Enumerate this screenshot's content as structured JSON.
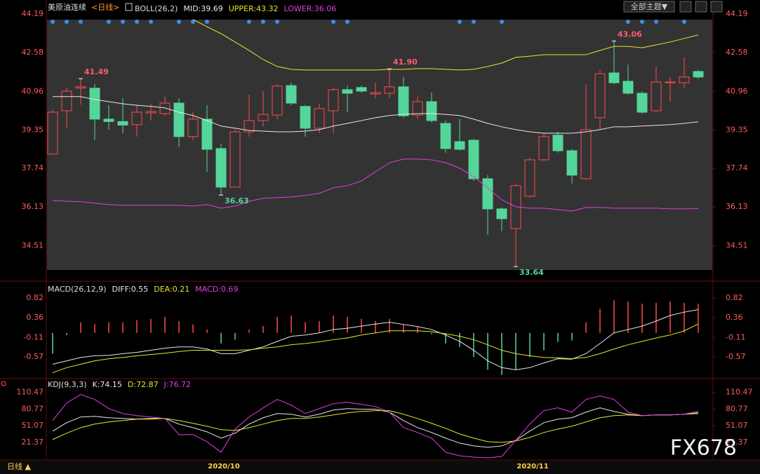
{
  "header": {
    "instrument": "美原油连续",
    "period": "<日线>"
  },
  "toolbar": {
    "theme_button": "全部主题▼"
  },
  "footer": {
    "period_button": "日线 ▲"
  },
  "watermark": "FX678",
  "chart_data": [
    {
      "type": "candlestick",
      "title": "BOLL(26,2)",
      "categories": [
        null,
        null,
        null,
        null,
        null,
        null,
        null,
        null,
        null,
        null,
        null,
        null,
        "2020/10",
        null,
        null,
        null,
        null,
        null,
        null,
        null,
        null,
        null,
        null,
        null,
        null,
        null,
        null,
        null,
        null,
        null,
        null,
        null,
        null,
        null,
        "2020/11",
        null,
        null,
        null,
        null,
        null,
        null,
        null,
        null,
        null,
        null,
        null,
        null
      ],
      "open": [
        38.34,
        40.15,
        41.1,
        41.09,
        39.8,
        39.7,
        39.57,
        40.06,
        40.03,
        40.47,
        39.07,
        39.8,
        38.57,
        36.96,
        39.27,
        39.74,
        39.97,
        41.2,
        40.33,
        39.42,
        40.15,
        41.03,
        41.12,
        40.85,
        40.88,
        41.15,
        39.97,
        40.53,
        39.62,
        38.86,
        38.92,
        37.31,
        36.05,
        35.23,
        36.58,
        38.1,
        39.13,
        38.48,
        37.31,
        39.86,
        41.73,
        41.38,
        40.88,
        40.15,
        41.32,
        41.32,
        41.79
      ],
      "high": [
        40.2,
        41.12,
        41.49,
        41.26,
        40.38,
        40.68,
        40.38,
        40.44,
        40.74,
        40.68,
        40.09,
        40.38,
        38.77,
        39.36,
        40.82,
        40.97,
        41.26,
        41.32,
        40.38,
        40.44,
        41.12,
        41.2,
        41.2,
        41.32,
        41.9,
        41.56,
        40.74,
        40.91,
        39.74,
        39.8,
        38.98,
        37.46,
        36.11,
        37.11,
        38.19,
        39.21,
        39.27,
        38.54,
        41.26,
        41.85,
        43.06,
        42.08,
        40.97,
        41.99,
        41.56,
        42.37,
        41.85
      ],
      "low": [
        38.34,
        39.42,
        40.4,
        38.92,
        39.36,
        39.2,
        39.07,
        39.74,
        39.95,
        38.63,
        38.92,
        37.6,
        36.63,
        36.96,
        39.07,
        39.5,
        39.8,
        40.38,
        39.07,
        39.21,
        39.21,
        40.09,
        40.9,
        40.68,
        40.68,
        39.86,
        39.8,
        39.65,
        38.4,
        38.48,
        37.22,
        34.97,
        35.12,
        33.64,
        36.52,
        38.04,
        38.4,
        37.11,
        37.25,
        39.36,
        41.26,
        40.82,
        40.03,
        40.09,
        40.53,
        41.12,
        41.47
      ],
      "close": [
        40.09,
        40.97,
        41.15,
        39.8,
        39.7,
        39.55,
        40.09,
        40.12,
        40.47,
        39.07,
        39.8,
        38.54,
        36.96,
        39.27,
        39.74,
        40.0,
        41.18,
        40.47,
        39.42,
        40.24,
        41.03,
        40.88,
        40.97,
        40.9,
        41.15,
        39.94,
        40.53,
        39.74,
        38.57,
        38.54,
        37.31,
        36.05,
        35.64,
        37.02,
        38.1,
        39.07,
        38.48,
        37.46,
        39.36,
        41.7,
        41.32,
        40.88,
        40.09,
        41.35,
        41.35,
        41.56,
        41.56
      ],
      "up_color": "#ff4a4a",
      "down_color": "#54d69a",
      "series": [
        {
          "name": "MID:39.69",
          "color": "#e8e8e8",
          "values": [
            40.74,
            40.74,
            40.74,
            40.62,
            40.53,
            40.44,
            40.38,
            40.33,
            40.27,
            40.09,
            39.95,
            39.74,
            39.51,
            39.42,
            39.33,
            39.3,
            39.27,
            39.27,
            39.3,
            39.36,
            39.51,
            39.62,
            39.74,
            39.86,
            39.95,
            40.0,
            40.03,
            40.03,
            40.0,
            39.95,
            39.8,
            39.62,
            39.48,
            39.36,
            39.27,
            39.21,
            39.21,
            39.21,
            39.27,
            39.36,
            39.48,
            39.48,
            39.51,
            39.54,
            39.57,
            39.62,
            39.69
          ]
        },
        {
          "name": "UPPER:43.32",
          "color": "#e6e62e",
          "values": [
            null,
            null,
            null,
            null,
            null,
            null,
            null,
            null,
            null,
            null,
            43.96,
            43.66,
            43.37,
            43.02,
            42.67,
            42.29,
            42.0,
            41.88,
            41.85,
            41.85,
            41.85,
            41.85,
            41.85,
            41.85,
            41.88,
            41.88,
            41.91,
            41.91,
            41.88,
            41.85,
            41.88,
            42.0,
            42.14,
            42.38,
            42.43,
            42.49,
            42.49,
            42.49,
            42.49,
            42.67,
            42.84,
            42.84,
            42.78,
            42.9,
            43.02,
            43.17,
            43.32
          ]
        },
        {
          "name": "LOWER:36.06",
          "color": "#e040e0",
          "values": [
            36.4,
            36.37,
            36.35,
            36.29,
            36.23,
            36.2,
            36.2,
            36.2,
            36.2,
            36.2,
            36.17,
            36.23,
            36.08,
            36.17,
            36.37,
            36.49,
            36.52,
            36.55,
            36.61,
            36.7,
            36.93,
            37.02,
            37.22,
            37.6,
            37.98,
            38.13,
            38.13,
            38.1,
            37.98,
            37.75,
            37.4,
            36.93,
            36.43,
            36.14,
            36.08,
            36.08,
            36.02,
            35.96,
            36.11,
            36.11,
            36.08,
            36.08,
            36.08,
            36.08,
            36.05,
            36.05,
            36.06
          ]
        }
      ],
      "annotations": [
        {
          "value": 41.49,
          "label": "41.49"
        },
        {
          "value": 36.63,
          "label": "36.63"
        },
        {
          "value": 41.9,
          "label": "41.90"
        },
        {
          "value": 33.64,
          "label": "33.64"
        },
        {
          "value": 43.06,
          "label": "43.06"
        }
      ],
      "ylim": [
        33.5,
        44.19
      ],
      "yticks": [
        34.51,
        36.13,
        37.74,
        39.35,
        40.96,
        42.58,
        44.19
      ]
    },
    {
      "type": "macd",
      "title": "MACD(26,12,9)",
      "values": [
        -0.49,
        -0.05,
        0.25,
        0.21,
        0.25,
        0.25,
        0.3,
        0.33,
        0.38,
        0.28,
        0.2,
        0.08,
        -0.25,
        -0.16,
        0.08,
        0.16,
        0.38,
        0.41,
        0.25,
        0.28,
        0.41,
        0.38,
        0.33,
        0.28,
        0.33,
        0.2,
        0.16,
        -0.03,
        -0.25,
        -0.33,
        -0.57,
        -0.87,
        -0.99,
        -0.87,
        -0.57,
        -0.41,
        -0.21,
        -0.18,
        0.25,
        0.57,
        0.77,
        0.74,
        0.69,
        0.71,
        0.74,
        0.71,
        0.69
      ],
      "up_color": "#ff4a4a",
      "down_color": "#54d69a",
      "series": [
        {
          "name": "DIFF:0.55",
          "color": "#e8e8e8",
          "values": [
            -0.74,
            -0.66,
            -0.58,
            -0.54,
            -0.53,
            -0.49,
            -0.46,
            -0.41,
            -0.36,
            -0.33,
            -0.33,
            -0.38,
            -0.49,
            -0.49,
            -0.41,
            -0.33,
            -0.2,
            -0.08,
            -0.05,
            0.0,
            0.08,
            0.11,
            0.16,
            0.21,
            0.25,
            0.2,
            0.15,
            0.08,
            -0.05,
            -0.2,
            -0.41,
            -0.66,
            -0.82,
            -0.87,
            -0.82,
            -0.71,
            -0.61,
            -0.62,
            -0.49,
            -0.25,
            0.0,
            0.08,
            0.16,
            0.28,
            0.41,
            0.49,
            0.55
          ]
        },
        {
          "name": "DEA:0.21",
          "color": "#e6e62e",
          "values": [
            -0.94,
            -0.82,
            -0.74,
            -0.66,
            -0.61,
            -0.58,
            -0.54,
            -0.51,
            -0.48,
            -0.44,
            -0.41,
            -0.41,
            -0.41,
            -0.41,
            -0.4,
            -0.36,
            -0.33,
            -0.28,
            -0.25,
            -0.21,
            -0.16,
            -0.12,
            -0.05,
            0.0,
            0.05,
            0.05,
            0.05,
            0.03,
            -0.02,
            -0.08,
            -0.16,
            -0.28,
            -0.41,
            -0.49,
            -0.54,
            -0.58,
            -0.59,
            -0.61,
            -0.58,
            -0.49,
            -0.38,
            -0.28,
            -0.2,
            -0.12,
            -0.05,
            0.05,
            0.21
          ]
        }
      ],
      "legend": {
        "name": "MACD:0.69",
        "color": "#e040e0"
      },
      "ylim": [
        -1.08,
        0.94
      ],
      "yticks": [
        0.82,
        0.36,
        -0.11,
        -0.57
      ]
    },
    {
      "type": "line",
      "title": "KDJ(9,3,3)",
      "series": [
        {
          "name": "K:74.15",
          "color": "#e8e8e8",
          "values": [
            41.5,
            56.5,
            66.6,
            67.8,
            65.3,
            64.0,
            62.8,
            64.0,
            64.0,
            54.0,
            47.7,
            40.2,
            28.9,
            37.7,
            54.0,
            65.3,
            72.8,
            71.6,
            66.6,
            71.6,
            79.1,
            81.6,
            80.4,
            80.4,
            75.3,
            60.3,
            47.7,
            39.0,
            28.9,
            20.1,
            15.1,
            12.6,
            15.1,
            25.1,
            41.5,
            56.5,
            62.8,
            65.3,
            75.3,
            82.9,
            76.6,
            71.6,
            69.1,
            70.3,
            70.3,
            71.6,
            74.15
          ]
        },
        {
          "name": "D:72.87",
          "color": "#e6e62e",
          "values": [
            26.4,
            37.7,
            47.7,
            54.0,
            57.8,
            60.3,
            62.8,
            62.8,
            64.0,
            60.3,
            55.3,
            50.2,
            44.0,
            42.7,
            47.7,
            54.0,
            60.3,
            64.0,
            64.0,
            66.6,
            70.3,
            74.1,
            76.6,
            77.9,
            77.9,
            71.6,
            64.0,
            55.3,
            46.5,
            36.4,
            28.9,
            22.6,
            21.4,
            23.9,
            30.2,
            39.0,
            45.2,
            50.2,
            57.8,
            65.3,
            69.1,
            70.3,
            69.1,
            70.3,
            70.3,
            71.6,
            72.87
          ]
        },
        {
          "name": "J:76.72",
          "color": "#e040e0",
          "values": [
            60.3,
            91.6,
            106.7,
            97.9,
            81.6,
            72.8,
            69.1,
            66.6,
            64.0,
            35.2,
            35.2,
            22.6,
            3.8,
            45.2,
            66.6,
            82.9,
            97.9,
            87.9,
            72.8,
            81.6,
            90.4,
            92.9,
            89.1,
            85.4,
            75.3,
            47.7,
            39.0,
            28.9,
            3.8,
            -2.5,
            -4.9,
            -6.2,
            -3.7,
            25.1,
            54.0,
            77.9,
            82.9,
            75.3,
            97.9,
            104.2,
            97.9,
            75.3,
            69.1,
            70.3,
            70.3,
            71.6,
            76.72
          ]
        }
      ],
      "ylim": [
        -10,
        125
      ],
      "yticks": [
        110.47,
        80.77,
        51.07,
        21.37
      ]
    }
  ]
}
